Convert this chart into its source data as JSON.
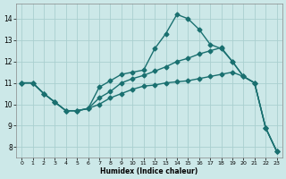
{
  "title": "",
  "xlabel": "Humidex (Indice chaleur)",
  "xlim": [
    -0.5,
    23.5
  ],
  "ylim": [
    7.5,
    14.7
  ],
  "xticks": [
    0,
    1,
    2,
    3,
    4,
    5,
    6,
    7,
    8,
    9,
    10,
    11,
    12,
    13,
    14,
    15,
    16,
    17,
    18,
    19,
    20,
    21,
    22,
    23
  ],
  "yticks": [
    8,
    9,
    10,
    11,
    12,
    13,
    14
  ],
  "background_color": "#cce8e8",
  "grid_color": "#aacfcf",
  "line_color": "#1a7070",
  "line_width": 1.0,
  "marker": "D",
  "marker_size": 2.5,
  "lines": [
    {
      "x": [
        0,
        1,
        2,
        3,
        4,
        5,
        6,
        7,
        8,
        9,
        10,
        11,
        12,
        13,
        14,
        15,
        16,
        17,
        18,
        19,
        20,
        21,
        22,
        23
      ],
      "y": [
        11.0,
        11.0,
        10.5,
        10.1,
        9.7,
        9.7,
        9.8,
        10.8,
        11.1,
        11.4,
        11.5,
        11.6,
        12.6,
        13.3,
        14.2,
        14.0,
        13.5,
        12.8,
        12.6,
        12.0,
        11.3,
        11.0,
        8.9,
        7.8
      ]
    },
    {
      "x": [
        0,
        1,
        2,
        3,
        4,
        5,
        6,
        7,
        8,
        9,
        10,
        11,
        12,
        13,
        14,
        15,
        16,
        17,
        18,
        19,
        20,
        21,
        22,
        23
      ],
      "y": [
        11.0,
        11.0,
        10.5,
        10.1,
        9.7,
        9.7,
        9.8,
        10.3,
        10.6,
        11.0,
        11.2,
        11.35,
        11.55,
        11.75,
        12.0,
        12.15,
        12.35,
        12.5,
        12.65,
        12.0,
        11.3,
        11.0,
        8.9,
        7.8
      ]
    },
    {
      "x": [
        0,
        1,
        2,
        3,
        4,
        5,
        6,
        7,
        8,
        9,
        10,
        11,
        12,
        13,
        14,
        15,
        16,
        17,
        18,
        19,
        20,
        21,
        22,
        23
      ],
      "y": [
        11.0,
        11.0,
        10.5,
        10.1,
        9.7,
        9.7,
        9.8,
        10.0,
        10.3,
        10.5,
        10.7,
        10.85,
        10.9,
        11.0,
        11.05,
        11.1,
        11.2,
        11.3,
        11.4,
        11.5,
        11.3,
        11.0,
        8.9,
        7.8
      ]
    }
  ]
}
